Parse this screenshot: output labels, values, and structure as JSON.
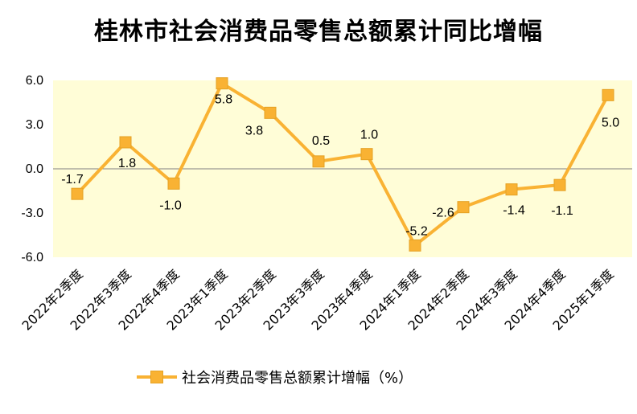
{
  "chart_data": {
    "type": "line",
    "title": "桂林市社会消费品零售总额累计同比增幅",
    "categories": [
      "2022年2季度",
      "2022年3季度",
      "2022年4季度",
      "2023年1季度",
      "2023年2季度",
      "2023年3季度",
      "2023年4季度",
      "2024年1季度",
      "2024年2季度",
      "2024年3季度",
      "2024年4季度",
      "2025年1季度"
    ],
    "series": [
      {
        "name": "社会消费品零售总额累计增幅（%）",
        "values": [
          -1.7,
          1.8,
          -1.0,
          5.8,
          3.8,
          0.5,
          1.0,
          -5.2,
          -2.6,
          -1.4,
          -1.1,
          5.0
        ],
        "labels": [
          "-1.7",
          "1.8",
          "-1.0",
          "5.8",
          "3.8",
          "0.5",
          "1.0",
          "-5.2",
          "-2.6",
          "-1.4",
          "-1.1",
          "5.0"
        ]
      }
    ],
    "yticks": [
      "6.0",
      "3.0",
      "0.0",
      "-3.0",
      "-6.0"
    ],
    "ytick_values": [
      6,
      3,
      0,
      -3,
      -6
    ],
    "ylim": [
      -6,
      6
    ],
    "xlabel": "",
    "ylabel": "",
    "legend_position": "bottom",
    "colors": {
      "line": "#F9B233",
      "marker_edge": "#E5A124",
      "plot_bg": "#FFFDD7",
      "zero_line": "#808080"
    }
  }
}
